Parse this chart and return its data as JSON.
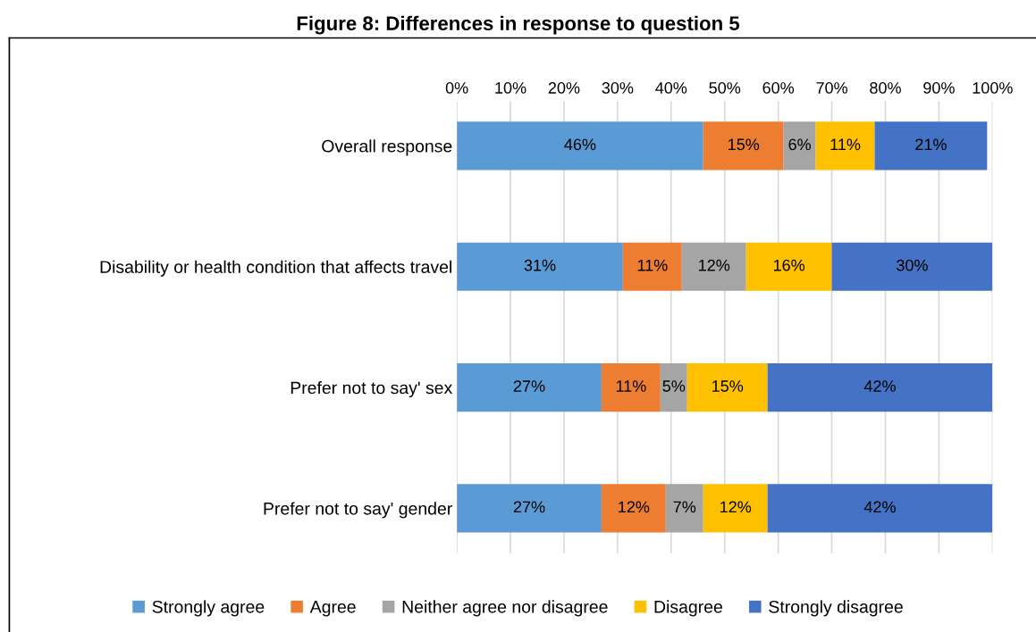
{
  "chart_data": {
    "type": "bar",
    "orientation": "horizontal",
    "stacked": true,
    "title": "Figure 8: Differences in response to question 5",
    "categories": [
      "Overall response",
      "Disability or health condition that affects travel",
      "Prefer not to say' sex",
      "Prefer not to say' gender"
    ],
    "series": [
      {
        "name": "Strongly agree",
        "color": "#5b9bd5",
        "values": [
          46,
          31,
          27,
          27
        ],
        "value_labels": [
          "46%",
          "31%",
          "27%",
          "27%"
        ]
      },
      {
        "name": "Agree",
        "color": "#ed7d31",
        "values": [
          15,
          11,
          11,
          12
        ],
        "value_labels": [
          "15%",
          "11%",
          "11%",
          "12%"
        ]
      },
      {
        "name": "Neither agree nor disagree",
        "color": "#a5a5a5",
        "values": [
          6,
          12,
          5,
          7
        ],
        "value_labels": [
          "6%",
          "12%",
          "5%",
          "7%"
        ]
      },
      {
        "name": "Disagree",
        "color": "#ffc000",
        "values": [
          11,
          16,
          15,
          12
        ],
        "value_labels": [
          "11%",
          "16%",
          "15%",
          "12%"
        ]
      },
      {
        "name": "Strongly disagree",
        "color": "#4472c4",
        "values": [
          21,
          30,
          42,
          42
        ],
        "value_labels": [
          "21%",
          "30%",
          "42%",
          "42%"
        ]
      }
    ],
    "xlim": [
      0,
      100
    ],
    "xticks": [
      {
        "value": 0,
        "label": "0%"
      },
      {
        "value": 10,
        "label": "10%"
      },
      {
        "value": 20,
        "label": "20%"
      },
      {
        "value": 30,
        "label": "30%"
      },
      {
        "value": 40,
        "label": "40%"
      },
      {
        "value": 50,
        "label": "50%"
      },
      {
        "value": 60,
        "label": "60%"
      },
      {
        "value": 70,
        "label": "70%"
      },
      {
        "value": 80,
        "label": "80%"
      },
      {
        "value": 90,
        "label": "90%"
      },
      {
        "value": 100,
        "label": "100%"
      }
    ],
    "grid": "x",
    "legend": "bottom"
  }
}
